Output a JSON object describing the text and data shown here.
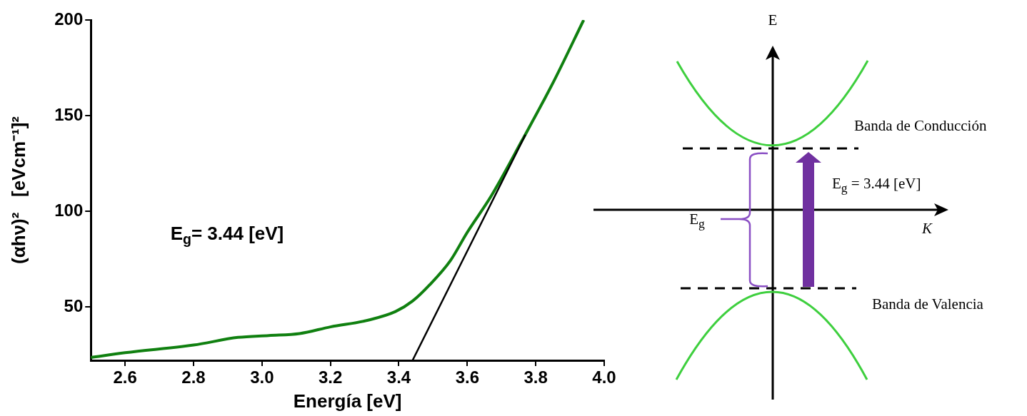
{
  "chart_data": [
    {
      "type": "line",
      "xlabel": "Energía [eV]",
      "ylabel": "(αhν)²   [eVcm⁻¹]²",
      "xlim": [
        2.5,
        4.0
      ],
      "xticks": [
        {
          "value": 2.6,
          "label": "2.6"
        },
        {
          "value": 2.8,
          "label": "2.8"
        },
        {
          "value": 3.0,
          "label": "3.0"
        },
        {
          "value": 3.2,
          "label": "3.2"
        },
        {
          "value": 3.4,
          "label": "3.4"
        },
        {
          "value": 3.6,
          "label": "3.6"
        },
        {
          "value": 3.8,
          "label": "3.8"
        },
        {
          "value": 4.0,
          "label": "4.0"
        }
      ],
      "ylim": [
        22,
        200
      ],
      "yticks": [
        50,
        100,
        150,
        200
      ],
      "legend": false,
      "annotations": [
        "E$_{g}$= 3.44 [eV]"
      ],
      "series": [
        {
          "color": "#108010",
          "x": [
            2.5,
            2.6,
            2.8,
            2.93,
            3.02,
            3.11,
            3.2,
            3.31,
            3.39,
            3.44,
            3.49,
            3.55,
            3.6,
            3.67,
            3.76,
            3.85,
            3.94
          ],
          "values": [
            23.5,
            26,
            30,
            34,
            35,
            36,
            39.5,
            43,
            47.5,
            53,
            61.5,
            74,
            89,
            108,
            137,
            167,
            200
          ]
        },
        {
          "type": "line",
          "color": "#000000",
          "x": [
            3.44,
            3.77
          ],
          "values": [
            22,
            140
          ]
        }
      ]
    },
    {
      "type": "other",
      "annotations": [
        "E",
        "K",
        "Banda de Conducción",
        "Banda de Valencia",
        "E$_{g}$ = 3.44 [eV]",
        "E$_{g}$"
      ]
    }
  ]
}
